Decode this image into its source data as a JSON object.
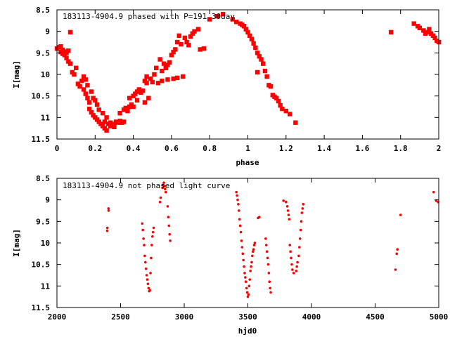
{
  "chart_data": [
    {
      "type": "scatter",
      "title": "183113-4904.9 phased with P=191.30day",
      "xlabel": "phase",
      "ylabel": "I[mag]",
      "xlim": [
        0,
        2
      ],
      "ylim": [
        8.5,
        11.5
      ],
      "y_inverted": true,
      "xticks": [
        "0",
        "0.2",
        "0.4",
        "0.6",
        "0.8",
        "1",
        "1.2",
        "1.4",
        "1.6",
        "1.8",
        "2"
      ],
      "yticks": [
        "8.5",
        "9",
        "9.5",
        "10",
        "10.5",
        "11",
        "11.5"
      ],
      "grid": false,
      "marker_color": "#ff0000",
      "points": [
        [
          0.0,
          9.4
        ],
        [
          0.01,
          9.37
        ],
        [
          0.02,
          9.35
        ],
        [
          0.02,
          9.48
        ],
        [
          0.03,
          9.43
        ],
        [
          0.03,
          9.52
        ],
        [
          0.04,
          9.47
        ],
        [
          0.04,
          9.55
        ],
        [
          0.05,
          9.5
        ],
        [
          0.05,
          9.62
        ],
        [
          0.06,
          9.7
        ],
        [
          0.06,
          9.45
        ],
        [
          0.07,
          9.75
        ],
        [
          0.07,
          9.02
        ],
        [
          0.08,
          9.95
        ],
        [
          0.09,
          10.0
        ],
        [
          0.1,
          9.85
        ],
        [
          0.11,
          10.22
        ],
        [
          0.12,
          10.28
        ],
        [
          0.13,
          10.15
        ],
        [
          0.14,
          10.35
        ],
        [
          0.14,
          10.05
        ],
        [
          0.15,
          10.45
        ],
        [
          0.15,
          10.12
        ],
        [
          0.16,
          10.55
        ],
        [
          0.16,
          10.25
        ],
        [
          0.17,
          10.65
        ],
        [
          0.17,
          10.8
        ],
        [
          0.18,
          10.88
        ],
        [
          0.18,
          10.4
        ],
        [
          0.19,
          10.95
        ],
        [
          0.19,
          10.55
        ],
        [
          0.2,
          11.0
        ],
        [
          0.2,
          10.6
        ],
        [
          0.21,
          11.05
        ],
        [
          0.21,
          10.7
        ],
        [
          0.22,
          11.1
        ],
        [
          0.22,
          10.82
        ],
        [
          0.23,
          11.15
        ],
        [
          0.24,
          11.2
        ],
        [
          0.24,
          10.9
        ],
        [
          0.25,
          11.1
        ],
        [
          0.25,
          11.25
        ],
        [
          0.26,
          11.3
        ],
        [
          0.26,
          11.0
        ],
        [
          0.27,
          11.15
        ],
        [
          0.28,
          11.2
        ],
        [
          0.28,
          11.12
        ],
        [
          0.29,
          11.18
        ],
        [
          0.3,
          11.15
        ],
        [
          0.3,
          11.22
        ],
        [
          0.31,
          11.1
        ],
        [
          0.32,
          11.12
        ],
        [
          0.33,
          11.08
        ],
        [
          0.33,
          10.9
        ],
        [
          0.34,
          11.12
        ],
        [
          0.35,
          10.82
        ],
        [
          0.35,
          11.1
        ],
        [
          0.36,
          10.78
        ],
        [
          0.37,
          10.85
        ],
        [
          0.38,
          10.75
        ],
        [
          0.38,
          10.55
        ],
        [
          0.39,
          10.7
        ],
        [
          0.4,
          10.5
        ],
        [
          0.4,
          10.75
        ],
        [
          0.41,
          10.45
        ],
        [
          0.42,
          10.4
        ],
        [
          0.42,
          10.6
        ],
        [
          0.43,
          10.35
        ],
        [
          0.44,
          10.42
        ],
        [
          0.45,
          10.38
        ],
        [
          0.46,
          10.15
        ],
        [
          0.46,
          10.65
        ],
        [
          0.47,
          10.2
        ],
        [
          0.47,
          10.05
        ],
        [
          0.48,
          10.55
        ],
        [
          0.49,
          10.1
        ],
        [
          0.5,
          10.18
        ],
        [
          0.51,
          10.0
        ],
        [
          0.52,
          9.85
        ],
        [
          0.53,
          10.2
        ],
        [
          0.54,
          9.65
        ],
        [
          0.55,
          10.15
        ],
        [
          0.55,
          9.92
        ],
        [
          0.56,
          9.75
        ],
        [
          0.57,
          9.85
        ],
        [
          0.58,
          9.78
        ],
        [
          0.58,
          10.12
        ],
        [
          0.59,
          9.72
        ],
        [
          0.6,
          9.55
        ],
        [
          0.61,
          10.1
        ],
        [
          0.61,
          9.48
        ],
        [
          0.62,
          9.42
        ],
        [
          0.63,
          10.08
        ],
        [
          0.63,
          9.25
        ],
        [
          0.64,
          9.1
        ],
        [
          0.65,
          9.3
        ],
        [
          0.66,
          10.05
        ],
        [
          0.67,
          9.15
        ],
        [
          0.68,
          9.25
        ],
        [
          0.69,
          9.32
        ],
        [
          0.7,
          9.12
        ],
        [
          0.71,
          9.05
        ],
        [
          0.72,
          9.0
        ],
        [
          0.74,
          8.95
        ],
        [
          0.75,
          9.42
        ],
        [
          0.77,
          9.4
        ],
        [
          0.8,
          8.72
        ],
        [
          0.84,
          8.65
        ],
        [
          0.87,
          8.6
        ],
        [
          0.92,
          8.72
        ],
        [
          0.94,
          8.78
        ],
        [
          0.96,
          8.82
        ],
        [
          0.97,
          8.85
        ],
        [
          0.98,
          8.88
        ],
        [
          0.99,
          8.95
        ],
        [
          1.0,
          9.02
        ],
        [
          1.01,
          9.1
        ],
        [
          1.02,
          9.18
        ],
        [
          1.03,
          9.28
        ],
        [
          1.04,
          9.38
        ],
        [
          1.05,
          9.5
        ],
        [
          1.06,
          9.58
        ],
        [
          1.07,
          9.65
        ],
        [
          1.08,
          9.75
        ],
        [
          1.09,
          9.92
        ],
        [
          1.05,
          9.95
        ],
        [
          1.1,
          10.05
        ],
        [
          1.11,
          10.25
        ],
        [
          1.12,
          10.28
        ],
        [
          1.13,
          10.48
        ],
        [
          1.14,
          10.52
        ],
        [
          1.15,
          10.55
        ],
        [
          1.16,
          10.62
        ],
        [
          1.17,
          10.72
        ],
        [
          1.18,
          10.8
        ],
        [
          1.2,
          10.85
        ],
        [
          1.22,
          10.92
        ],
        [
          1.25,
          11.12
        ],
        [
          1.75,
          9.02
        ],
        [
          1.87,
          8.82
        ],
        [
          1.89,
          8.88
        ],
        [
          1.9,
          8.92
        ],
        [
          1.92,
          8.98
        ],
        [
          1.93,
          9.05
        ],
        [
          1.94,
          9.02
        ],
        [
          1.95,
          8.95
        ],
        [
          1.96,
          9.05
        ],
        [
          1.97,
          9.1
        ],
        [
          1.98,
          9.15
        ],
        [
          1.99,
          9.22
        ],
        [
          2.0,
          9.25
        ]
      ]
    },
    {
      "type": "scatter",
      "title": "183113-4904.9 not phased light curve",
      "xlabel": "hjd0",
      "ylabel": "I[mag]",
      "xlim": [
        2000,
        5000
      ],
      "ylim": [
        8.5,
        11.5
      ],
      "y_inverted": true,
      "xticks": [
        "2000",
        "2500",
        "3000",
        "3500",
        "4000",
        "4500",
        "5000"
      ],
      "yticks": [
        "8.5",
        "9",
        "9.5",
        "10",
        "10.5",
        "11",
        "11.5"
      ],
      "grid": false,
      "marker_color": "#ff0000",
      "points": [
        [
          2395,
          9.72
        ],
        [
          2396,
          9.65
        ],
        [
          2405,
          9.2
        ],
        [
          2406,
          9.25
        ],
        [
          2670,
          9.55
        ],
        [
          2675,
          9.7
        ],
        [
          2680,
          9.9
        ],
        [
          2685,
          10.05
        ],
        [
          2690,
          10.3
        ],
        [
          2695,
          10.45
        ],
        [
          2700,
          10.6
        ],
        [
          2705,
          10.75
        ],
        [
          2710,
          10.85
        ],
        [
          2715,
          10.95
        ],
        [
          2720,
          11.05
        ],
        [
          2725,
          11.12
        ],
        [
          2730,
          11.1
        ],
        [
          2735,
          10.7
        ],
        [
          2740,
          10.35
        ],
        [
          2745,
          10.05
        ],
        [
          2750,
          9.85
        ],
        [
          2755,
          9.75
        ],
        [
          2760,
          9.65
        ],
        [
          2810,
          9.05
        ],
        [
          2815,
          8.95
        ],
        [
          2830,
          8.72
        ],
        [
          2835,
          8.65
        ],
        [
          2840,
          8.6
        ],
        [
          2845,
          8.68
        ],
        [
          2850,
          8.75
        ],
        [
          2855,
          8.82
        ],
        [
          2870,
          9.15
        ],
        [
          2875,
          9.4
        ],
        [
          2880,
          9.6
        ],
        [
          2885,
          9.8
        ],
        [
          2890,
          9.95
        ],
        [
          3410,
          8.82
        ],
        [
          3415,
          8.9
        ],
        [
          3420,
          9.0
        ],
        [
          3425,
          9.1
        ],
        [
          3430,
          9.25
        ],
        [
          3435,
          9.45
        ],
        [
          3440,
          9.6
        ],
        [
          3445,
          9.75
        ],
        [
          3450,
          9.95
        ],
        [
          3455,
          10.1
        ],
        [
          3460,
          10.25
        ],
        [
          3465,
          10.4
        ],
        [
          3470,
          10.55
        ],
        [
          3475,
          10.7
        ],
        [
          3480,
          10.8
        ],
        [
          3485,
          10.9
        ],
        [
          3490,
          11.05
        ],
        [
          3495,
          11.15
        ],
        [
          3500,
          11.25
        ],
        [
          3505,
          11.2
        ],
        [
          3510,
          11.0
        ],
        [
          3515,
          10.85
        ],
        [
          3520,
          10.65
        ],
        [
          3525,
          10.55
        ],
        [
          3530,
          10.45
        ],
        [
          3535,
          10.3
        ],
        [
          3540,
          10.2
        ],
        [
          3545,
          10.15
        ],
        [
          3550,
          10.05
        ],
        [
          3555,
          10.0
        ],
        [
          3580,
          9.42
        ],
        [
          3590,
          9.4
        ],
        [
          3640,
          9.9
        ],
        [
          3645,
          10.05
        ],
        [
          3650,
          10.2
        ],
        [
          3655,
          10.35
        ],
        [
          3660,
          10.5
        ],
        [
          3665,
          10.7
        ],
        [
          3670,
          10.9
        ],
        [
          3675,
          11.05
        ],
        [
          3680,
          11.15
        ],
        [
          3780,
          9.02
        ],
        [
          3800,
          9.05
        ],
        [
          3810,
          9.15
        ],
        [
          3815,
          9.25
        ],
        [
          3820,
          9.35
        ],
        [
          3825,
          9.45
        ],
        [
          3830,
          10.05
        ],
        [
          3835,
          10.2
        ],
        [
          3840,
          10.35
        ],
        [
          3845,
          10.5
        ],
        [
          3850,
          10.62
        ],
        [
          3860,
          10.7
        ],
        [
          3880,
          10.65
        ],
        [
          3885,
          10.55
        ],
        [
          3890,
          10.45
        ],
        [
          3900,
          10.3
        ],
        [
          3905,
          10.1
        ],
        [
          3910,
          9.9
        ],
        [
          3915,
          9.7
        ],
        [
          3920,
          9.5
        ],
        [
          3925,
          9.3
        ],
        [
          3930,
          9.2
        ],
        [
          3935,
          9.1
        ],
        [
          4660,
          10.62
        ],
        [
          4670,
          10.25
        ],
        [
          4675,
          10.15
        ],
        [
          4700,
          9.35
        ],
        [
          4960,
          8.82
        ],
        [
          4980,
          9.02
        ],
        [
          4995,
          9.05
        ]
      ]
    }
  ]
}
